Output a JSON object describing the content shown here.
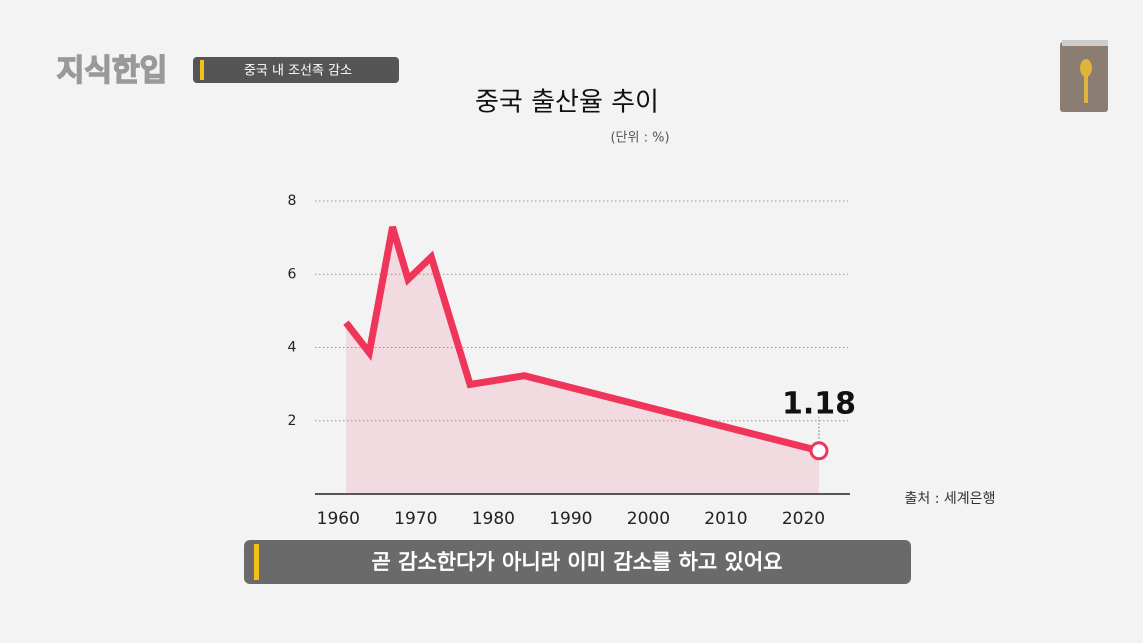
{
  "logo": "지식한입",
  "segment_tag": "중국 내 조선족 감소",
  "caption": "곧 감소한다가 아니라 이미 감소를 하고 있어요",
  "chart_data": {
    "type": "line",
    "title": "중국 출산율 추이",
    "unit": "(단위 : %)",
    "source": "출처 : 세계은행",
    "x": [
      1961,
      1964,
      1967,
      1969,
      1972,
      1977,
      1984,
      2022
    ],
    "series": [
      {
        "name": "출산율",
        "color": "#f0355a",
        "values": [
          4.68,
          3.86,
          7.29,
          5.86,
          6.47,
          2.99,
          3.23,
          1.18
        ]
      }
    ],
    "xlim": [
      1957,
      2026
    ],
    "xticks": [
      1960,
      1970,
      1980,
      1990,
      2000,
      2010,
      2020
    ],
    "ylim": [
      0,
      8
    ],
    "yticks": [
      2,
      4,
      6,
      8
    ],
    "grid": true
  }
}
